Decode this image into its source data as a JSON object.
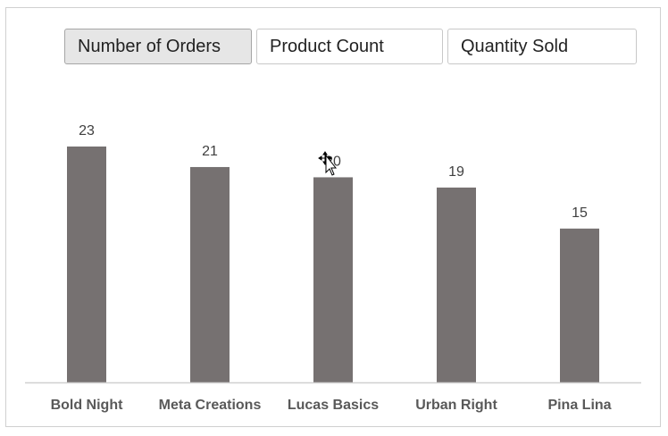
{
  "slicers": {
    "items": [
      {
        "label": "Number of Orders",
        "selected": true
      },
      {
        "label": "Product Count",
        "selected": false
      },
      {
        "label": "Quantity Sold",
        "selected": false
      }
    ]
  },
  "chart_data": {
    "type": "bar",
    "categories": [
      "Bold Night",
      "Meta Creations",
      "Lucas Basics",
      "Urban Right",
      "Pina Lina"
    ],
    "series": [
      {
        "values": [
          23,
          21,
          20,
          19,
          15
        ]
      }
    ],
    "data_labels": [
      "23",
      "21",
      "20",
      "19",
      "15"
    ],
    "ylim": [
      0,
      23
    ],
    "grid": false,
    "bar_color": "#767171",
    "axis_color": "#d0d0d0"
  }
}
